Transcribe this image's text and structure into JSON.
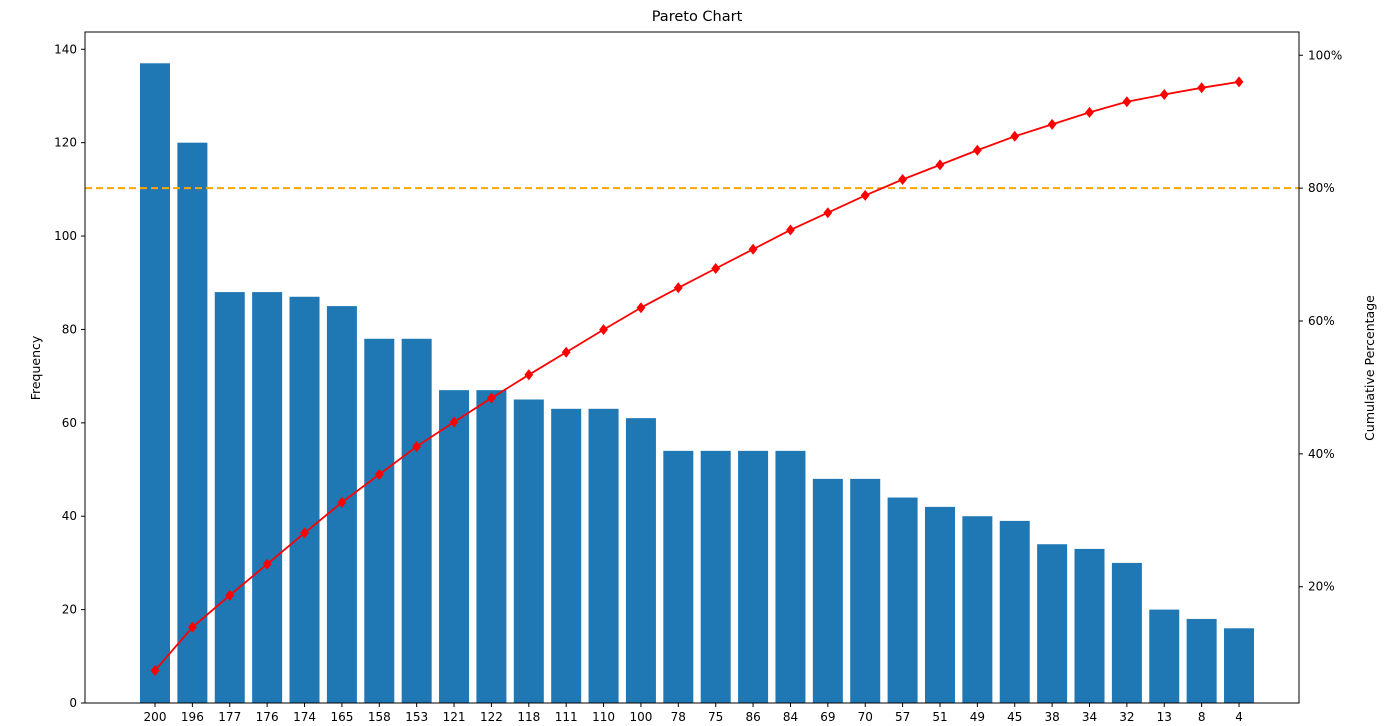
{
  "chart_data": {
    "type": "bar",
    "title": "Pareto Chart",
    "xlabel": "",
    "ylabel": "Frequency",
    "y2label": "Cumulative Percentage",
    "categories": [
      "200",
      "196",
      "177",
      "176",
      "174",
      "165",
      "158",
      "153",
      "121",
      "122",
      "118",
      "111",
      "110",
      "100",
      "78",
      "75",
      "86",
      "84",
      "69",
      "70",
      "57",
      "51",
      "49",
      "45",
      "38",
      "34",
      "32",
      "13",
      "8",
      "4"
    ],
    "series": [
      {
        "axis": "left",
        "type": "bar",
        "color": "#1f77b4",
        "values": [
          137,
          120,
          88,
          88,
          87,
          85,
          78,
          78,
          67,
          67,
          65,
          63,
          63,
          61,
          54,
          54,
          54,
          54,
          48,
          48,
          44,
          42,
          40,
          39,
          34,
          33,
          30,
          20,
          18,
          16
        ]
      },
      {
        "axis": "right",
        "type": "line",
        "marker": "diamond",
        "color": "#ff0000",
        "values": [
          7.4,
          13.9,
          18.7,
          23.4,
          28.1,
          32.7,
          36.9,
          41.1,
          44.8,
          48.4,
          51.9,
          55.3,
          58.7,
          62.0,
          65.0,
          67.9,
          70.8,
          73.7,
          76.3,
          78.9,
          81.3,
          83.5,
          85.7,
          87.8,
          89.6,
          91.4,
          93.0,
          94.1,
          95.1,
          96.0
        ]
      }
    ],
    "reference_line": {
      "axis": "right",
      "value": 80,
      "color": "#ffa500",
      "style": "dashed"
    },
    "ylim": [
      0,
      143.7
    ],
    "y2lim": [
      2.5,
      103.5
    ],
    "yticks": [
      0,
      20,
      40,
      60,
      80,
      100,
      120,
      140
    ],
    "y2ticks": [
      20,
      40,
      60,
      80,
      100
    ],
    "y2tick_labels": [
      "20%",
      "40%",
      "60%",
      "80%",
      "100%"
    ],
    "grid": false
  }
}
